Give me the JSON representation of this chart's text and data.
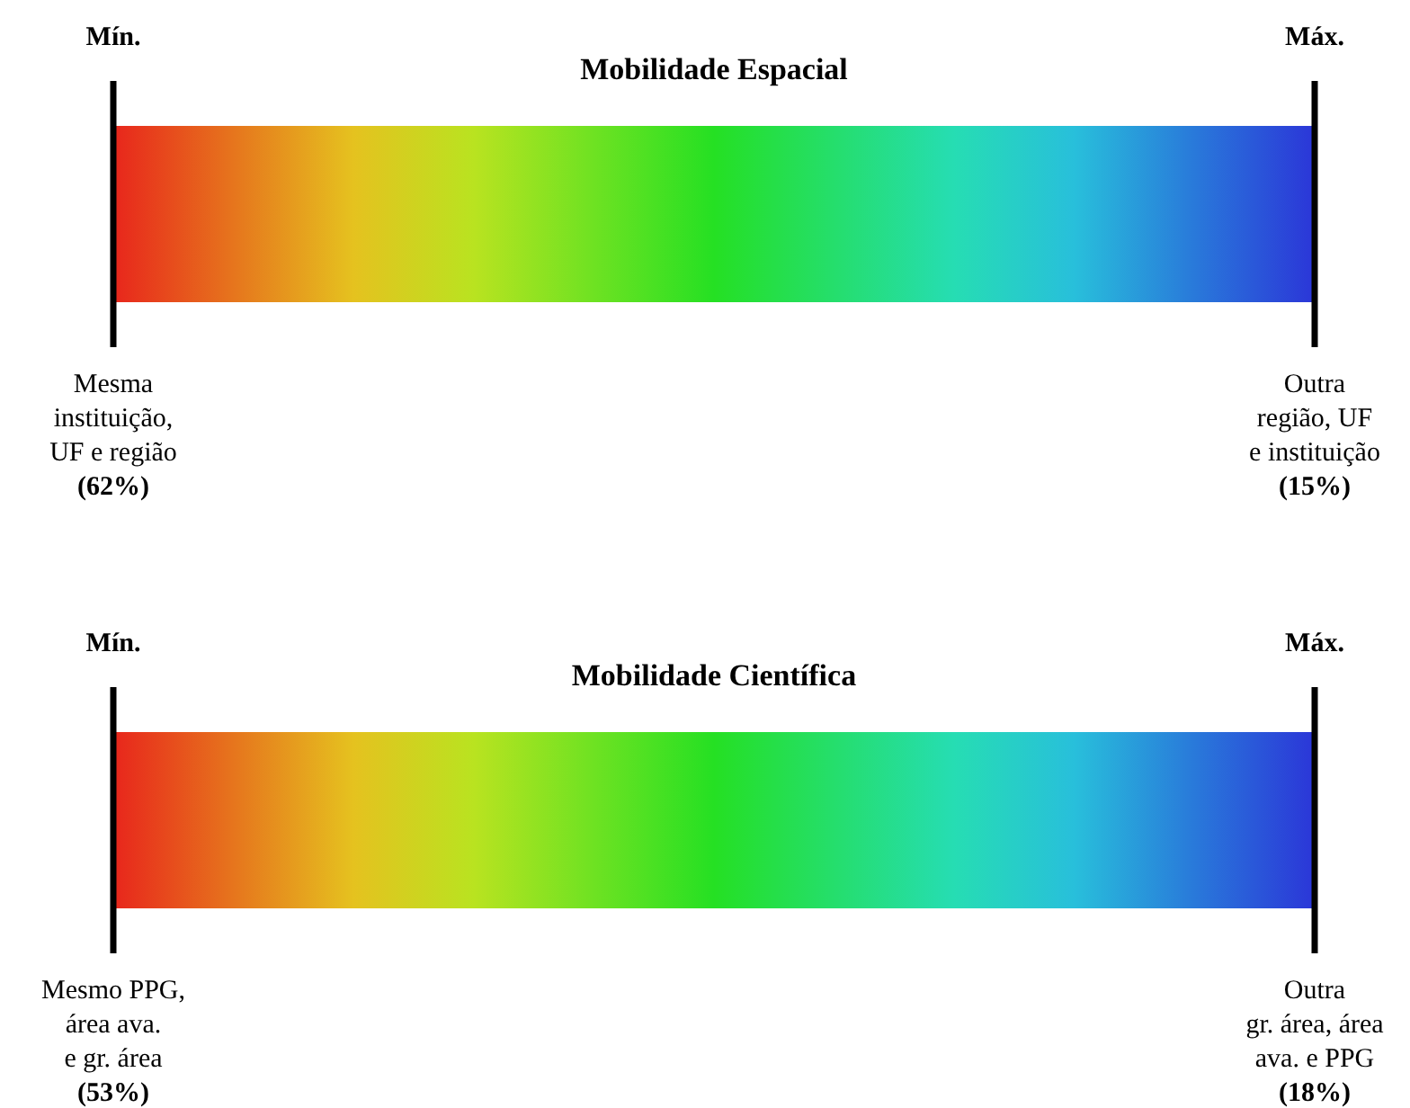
{
  "chart_data": [
    {
      "type": "other",
      "title": "Mobilidade Espacial",
      "annotations": [
        "Mín.",
        "Máx."
      ],
      "categories": [
        "Mesma\ninstituição,\nUF e região",
        "Outra\nregião, UF\ne instituição"
      ],
      "values": [
        62,
        15
      ],
      "value_labels": [
        "(62%)",
        "(15%)"
      ],
      "colors": [
        "#e8261c",
        "#2b36d8"
      ]
    },
    {
      "type": "other",
      "title": "Mobilidade Científica",
      "annotations": [
        "Mín.",
        "Máx."
      ],
      "categories": [
        "Mesmo PPG,\nárea ava.\ne gr. área",
        "Outra\ngr. área, área\nava. e PPG"
      ],
      "values": [
        53,
        18
      ],
      "value_labels": [
        "(53%)",
        "(18%)"
      ],
      "colors": [
        "#e8261c",
        "#2b36d8"
      ]
    }
  ]
}
